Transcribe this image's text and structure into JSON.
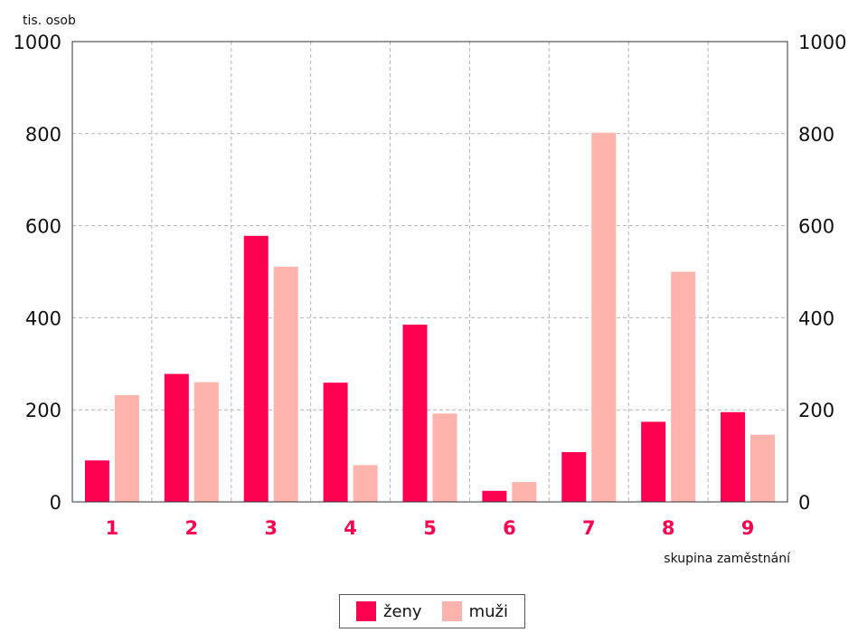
{
  "colors": {
    "zeny": "#ff0050",
    "muzi": "#ffb3ad",
    "category_label": "#ff0050",
    "grid": "#b4b4b4",
    "axis": "#333333"
  },
  "chart_data": {
    "type": "bar",
    "ylabel": "tis. osob",
    "xlabel": "skupina zaměstnání",
    "categories": [
      "1",
      "2",
      "3",
      "4",
      "5",
      "6",
      "7",
      "8",
      "9"
    ],
    "series": [
      {
        "name": "ženy",
        "values": [
          90,
          278,
          578,
          259,
          385,
          24,
          108,
          174,
          195
        ]
      },
      {
        "name": "muži",
        "values": [
          232,
          260,
          511,
          80,
          192,
          43,
          802,
          500,
          146
        ]
      }
    ],
    "ylim": [
      0,
      1000
    ],
    "yticks": [
      "0",
      "200",
      "400",
      "600",
      "800",
      "1000"
    ],
    "grid": true,
    "dual_y_axis": true,
    "legend_position": "bottom-center"
  }
}
